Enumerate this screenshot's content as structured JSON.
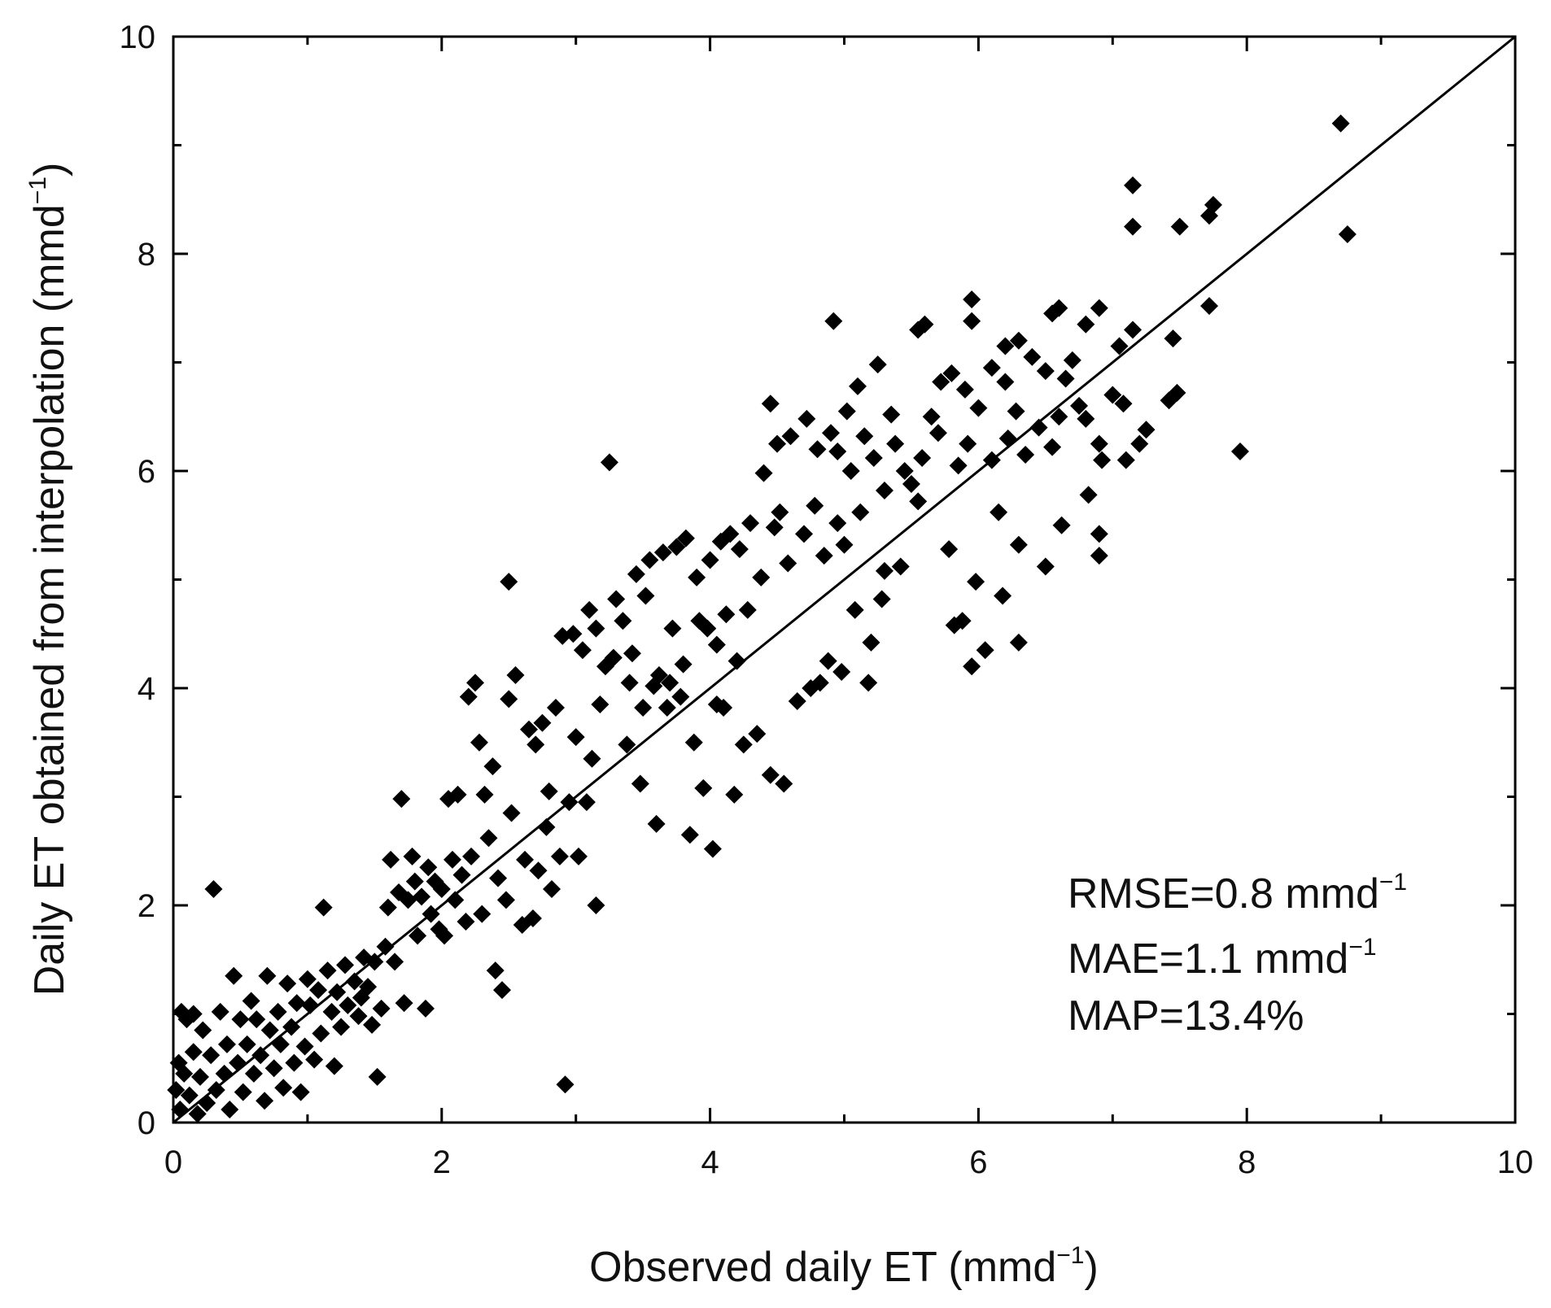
{
  "chart_data": {
    "type": "scatter",
    "title": "",
    "xlabel": "Observed daily ET (mmd",
    "xlabel_sup": "−1",
    "xlabel_close": ")",
    "ylabel": "Daily ET obtained from interpolation (mmd",
    "ylabel_sup": "−1",
    "ylabel_close": ")",
    "xlim": [
      0,
      10
    ],
    "ylim": [
      0,
      10
    ],
    "xticks": [
      0,
      2,
      4,
      6,
      8,
      10
    ],
    "yticks": [
      0,
      2,
      4,
      6,
      8,
      10
    ],
    "xtick_labels": [
      "0",
      "2",
      "4",
      "6",
      "8",
      "10"
    ],
    "ytick_labels": [
      "0",
      "2",
      "4",
      "6",
      "8",
      "10"
    ],
    "grid": false,
    "marker": "diamond",
    "marker_color": "#000000",
    "reference_line": {
      "label": "1:1",
      "x": [
        0,
        10
      ],
      "y": [
        0,
        10
      ]
    },
    "annotations": [
      {
        "text": "RMSE=0.8 mmd",
        "sup": "−1"
      },
      {
        "text": "MAE=1.1 mmd",
        "sup": "−1"
      },
      {
        "text": "MAP=13.4%",
        "sup": ""
      }
    ],
    "points": [
      [
        8.7,
        9.2
      ],
      [
        8.75,
        8.18
      ],
      [
        7.15,
        8.63
      ],
      [
        7.15,
        8.25
      ],
      [
        7.5,
        8.25
      ],
      [
        7.75,
        8.45
      ],
      [
        7.72,
        8.35
      ],
      [
        7.95,
        6.18
      ],
      [
        7.72,
        7.52
      ],
      [
        7.45,
        7.22
      ],
      [
        7.48,
        6.72
      ],
      [
        7.42,
        6.65
      ],
      [
        7.25,
        6.38
      ],
      [
        7.2,
        6.25
      ],
      [
        7.15,
        7.3
      ],
      [
        7.05,
        7.15
      ],
      [
        7.08,
        6.62
      ],
      [
        7.1,
        6.1
      ],
      [
        7.0,
        6.7
      ],
      [
        6.9,
        7.5
      ],
      [
        6.9,
        6.25
      ],
      [
        6.92,
        6.1
      ],
      [
        6.9,
        5.42
      ],
      [
        6.9,
        5.22
      ],
      [
        6.8,
        7.35
      ],
      [
        6.8,
        6.48
      ],
      [
        6.82,
        5.78
      ],
      [
        6.75,
        6.6
      ],
      [
        6.7,
        7.02
      ],
      [
        6.65,
        6.85
      ],
      [
        6.6,
        7.5
      ],
      [
        6.55,
        7.45
      ],
      [
        6.6,
        6.5
      ],
      [
        6.62,
        5.5
      ],
      [
        6.55,
        6.22
      ],
      [
        6.5,
        6.92
      ],
      [
        6.5,
        5.12
      ],
      [
        6.45,
        6.4
      ],
      [
        6.4,
        7.05
      ],
      [
        6.35,
        6.15
      ],
      [
        6.3,
        7.2
      ],
      [
        6.28,
        6.55
      ],
      [
        6.3,
        5.32
      ],
      [
        6.3,
        4.42
      ],
      [
        6.2,
        7.15
      ],
      [
        6.2,
        6.82
      ],
      [
        6.22,
        6.3
      ],
      [
        6.18,
        4.85
      ],
      [
        6.15,
        5.62
      ],
      [
        6.1,
        6.95
      ],
      [
        6.1,
        6.1
      ],
      [
        6.05,
        4.35
      ],
      [
        6.0,
        6.58
      ],
      [
        5.98,
        4.98
      ],
      [
        5.95,
        7.58
      ],
      [
        5.95,
        7.38
      ],
      [
        5.95,
        4.2
      ],
      [
        5.92,
        6.25
      ],
      [
        5.9,
        6.75
      ],
      [
        5.85,
        6.05
      ],
      [
        5.88,
        4.62
      ],
      [
        5.82,
        4.58
      ],
      [
        5.8,
        6.9
      ],
      [
        5.78,
        5.28
      ],
      [
        5.72,
        6.82
      ],
      [
        5.7,
        6.35
      ],
      [
        5.65,
        6.5
      ],
      [
        5.6,
        7.35
      ],
      [
        5.55,
        7.3
      ],
      [
        5.58,
        6.12
      ],
      [
        5.55,
        5.72
      ],
      [
        5.5,
        5.88
      ],
      [
        5.45,
        6.0
      ],
      [
        5.42,
        5.12
      ],
      [
        5.38,
        6.25
      ],
      [
        5.35,
        6.52
      ],
      [
        5.3,
        5.82
      ],
      [
        5.3,
        5.08
      ],
      [
        5.28,
        4.82
      ],
      [
        5.25,
        6.98
      ],
      [
        5.22,
        6.12
      ],
      [
        5.2,
        4.42
      ],
      [
        5.18,
        4.05
      ],
      [
        5.15,
        6.32
      ],
      [
        5.12,
        5.62
      ],
      [
        5.1,
        6.78
      ],
      [
        5.08,
        4.72
      ],
      [
        5.05,
        6.0
      ],
      [
        5.02,
        6.55
      ],
      [
        5.0,
        5.32
      ],
      [
        4.98,
        4.15
      ],
      [
        4.95,
        6.18
      ],
      [
        4.95,
        5.52
      ],
      [
        4.92,
        7.38
      ],
      [
        4.9,
        6.35
      ],
      [
        4.88,
        4.25
      ],
      [
        4.85,
        5.22
      ],
      [
        4.82,
        4.05
      ],
      [
        4.8,
        6.2
      ],
      [
        4.78,
        5.68
      ],
      [
        4.75,
        4.0
      ],
      [
        4.72,
        6.48
      ],
      [
        4.7,
        5.42
      ],
      [
        4.65,
        3.88
      ],
      [
        4.6,
        6.32
      ],
      [
        4.58,
        5.15
      ],
      [
        4.55,
        3.12
      ],
      [
        4.52,
        5.62
      ],
      [
        4.5,
        6.25
      ],
      [
        4.48,
        5.48
      ],
      [
        4.45,
        6.62
      ],
      [
        4.45,
        3.2
      ],
      [
        4.4,
        5.98
      ],
      [
        4.38,
        5.02
      ],
      [
        4.35,
        3.58
      ],
      [
        4.3,
        5.52
      ],
      [
        4.28,
        4.72
      ],
      [
        4.25,
        3.48
      ],
      [
        4.22,
        5.28
      ],
      [
        4.2,
        4.25
      ],
      [
        4.18,
        3.02
      ],
      [
        4.15,
        5.42
      ],
      [
        4.12,
        4.68
      ],
      [
        4.1,
        3.82
      ],
      [
        4.08,
        5.35
      ],
      [
        4.05,
        4.4
      ],
      [
        4.05,
        3.85
      ],
      [
        4.02,
        2.52
      ],
      [
        4.0,
        5.18
      ],
      [
        3.98,
        4.55
      ],
      [
        3.95,
        3.08
      ],
      [
        3.92,
        4.62
      ],
      [
        3.9,
        5.02
      ],
      [
        3.88,
        3.5
      ],
      [
        3.85,
        2.65
      ],
      [
        3.82,
        5.38
      ],
      [
        3.8,
        4.22
      ],
      [
        3.78,
        3.92
      ],
      [
        3.75,
        5.3
      ],
      [
        3.72,
        4.55
      ],
      [
        3.7,
        4.05
      ],
      [
        3.68,
        3.82
      ],
      [
        3.65,
        5.25
      ],
      [
        3.62,
        4.12
      ],
      [
        3.6,
        2.75
      ],
      [
        3.58,
        4.02
      ],
      [
        3.55,
        5.18
      ],
      [
        3.52,
        4.85
      ],
      [
        3.5,
        3.82
      ],
      [
        3.48,
        3.12
      ],
      [
        3.45,
        5.05
      ],
      [
        3.42,
        4.32
      ],
      [
        3.4,
        4.05
      ],
      [
        3.38,
        3.48
      ],
      [
        3.35,
        4.62
      ],
      [
        3.3,
        4.82
      ],
      [
        3.28,
        4.28
      ],
      [
        3.25,
        6.08
      ],
      [
        3.22,
        4.2
      ],
      [
        3.18,
        3.85
      ],
      [
        3.15,
        4.55
      ],
      [
        3.15,
        2.0
      ],
      [
        3.12,
        3.35
      ],
      [
        3.1,
        4.72
      ],
      [
        3.08,
        2.95
      ],
      [
        3.05,
        4.35
      ],
      [
        3.02,
        2.45
      ],
      [
        3.0,
        3.55
      ],
      [
        2.98,
        4.5
      ],
      [
        2.95,
        2.95
      ],
      [
        2.92,
        0.35
      ],
      [
        2.9,
        4.48
      ],
      [
        2.88,
        2.45
      ],
      [
        2.85,
        3.82
      ],
      [
        2.82,
        2.15
      ],
      [
        2.8,
        3.05
      ],
      [
        2.78,
        2.72
      ],
      [
        2.75,
        3.68
      ],
      [
        2.72,
        2.32
      ],
      [
        2.7,
        3.48
      ],
      [
        2.68,
        1.88
      ],
      [
        2.65,
        3.62
      ],
      [
        2.62,
        2.42
      ],
      [
        2.6,
        1.82
      ],
      [
        2.55,
        4.12
      ],
      [
        2.52,
        2.85
      ],
      [
        2.5,
        3.9
      ],
      [
        2.5,
        4.98
      ],
      [
        2.48,
        2.05
      ],
      [
        2.45,
        1.22
      ],
      [
        2.42,
        2.25
      ],
      [
        2.4,
        1.4
      ],
      [
        2.38,
        3.28
      ],
      [
        2.35,
        2.62
      ],
      [
        2.32,
        3.02
      ],
      [
        2.3,
        1.92
      ],
      [
        2.28,
        3.5
      ],
      [
        2.25,
        4.05
      ],
      [
        2.22,
        2.45
      ],
      [
        2.2,
        3.92
      ],
      [
        2.18,
        1.85
      ],
      [
        2.15,
        2.28
      ],
      [
        2.12,
        3.02
      ],
      [
        2.1,
        2.05
      ],
      [
        2.08,
        2.42
      ],
      [
        2.05,
        2.98
      ],
      [
        2.02,
        1.72
      ],
      [
        2.0,
        2.15
      ],
      [
        1.98,
        1.78
      ],
      [
        1.95,
        2.22
      ],
      [
        1.92,
        1.92
      ],
      [
        1.9,
        2.35
      ],
      [
        1.88,
        1.05
      ],
      [
        1.85,
        2.08
      ],
      [
        1.82,
        1.72
      ],
      [
        1.8,
        2.22
      ],
      [
        1.78,
        2.45
      ],
      [
        1.75,
        2.05
      ],
      [
        1.72,
        1.1
      ],
      [
        1.7,
        2.98
      ],
      [
        1.68,
        2.12
      ],
      [
        1.65,
        1.48
      ],
      [
        1.62,
        2.42
      ],
      [
        1.6,
        1.98
      ],
      [
        1.58,
        1.62
      ],
      [
        1.55,
        1.05
      ],
      [
        1.52,
        0.42
      ],
      [
        1.5,
        1.48
      ],
      [
        1.48,
        0.9
      ],
      [
        1.45,
        1.25
      ],
      [
        1.42,
        1.52
      ],
      [
        1.4,
        1.15
      ],
      [
        1.38,
        0.98
      ],
      [
        1.35,
        1.3
      ],
      [
        1.3,
        1.08
      ],
      [
        1.28,
        1.45
      ],
      [
        1.25,
        0.88
      ],
      [
        1.22,
        1.2
      ],
      [
        1.2,
        0.52
      ],
      [
        1.18,
        1.02
      ],
      [
        1.15,
        1.4
      ],
      [
        1.12,
        1.98
      ],
      [
        1.1,
        0.82
      ],
      [
        1.08,
        1.22
      ],
      [
        1.05,
        0.58
      ],
      [
        1.02,
        1.08
      ],
      [
        1.0,
        1.32
      ],
      [
        0.98,
        0.7
      ],
      [
        0.95,
        0.28
      ],
      [
        0.92,
        1.1
      ],
      [
        0.9,
        0.55
      ],
      [
        0.88,
        0.88
      ],
      [
        0.85,
        1.28
      ],
      [
        0.82,
        0.32
      ],
      [
        0.8,
        0.72
      ],
      [
        0.78,
        1.02
      ],
      [
        0.75,
        0.5
      ],
      [
        0.72,
        0.85
      ],
      [
        0.7,
        1.35
      ],
      [
        0.68,
        0.2
      ],
      [
        0.65,
        0.62
      ],
      [
        0.62,
        0.95
      ],
      [
        0.6,
        0.45
      ],
      [
        0.58,
        1.12
      ],
      [
        0.55,
        0.72
      ],
      [
        0.52,
        0.28
      ],
      [
        0.5,
        0.95
      ],
      [
        0.48,
        0.55
      ],
      [
        0.45,
        1.35
      ],
      [
        0.42,
        0.12
      ],
      [
        0.4,
        0.72
      ],
      [
        0.38,
        0.45
      ],
      [
        0.35,
        1.02
      ],
      [
        0.32,
        0.3
      ],
      [
        0.3,
        2.15
      ],
      [
        0.28,
        0.62
      ],
      [
        0.25,
        0.18
      ],
      [
        0.22,
        0.85
      ],
      [
        0.2,
        0.42
      ],
      [
        0.18,
        0.08
      ],
      [
        0.15,
        0.65
      ],
      [
        0.12,
        0.25
      ],
      [
        0.1,
        0.95
      ],
      [
        0.08,
        0.45
      ],
      [
        0.06,
        1.02
      ],
      [
        0.05,
        0.12
      ],
      [
        0.04,
        0.55
      ],
      [
        0.02,
        0.3
      ],
      [
        0.15,
        1.0
      ]
    ]
  }
}
